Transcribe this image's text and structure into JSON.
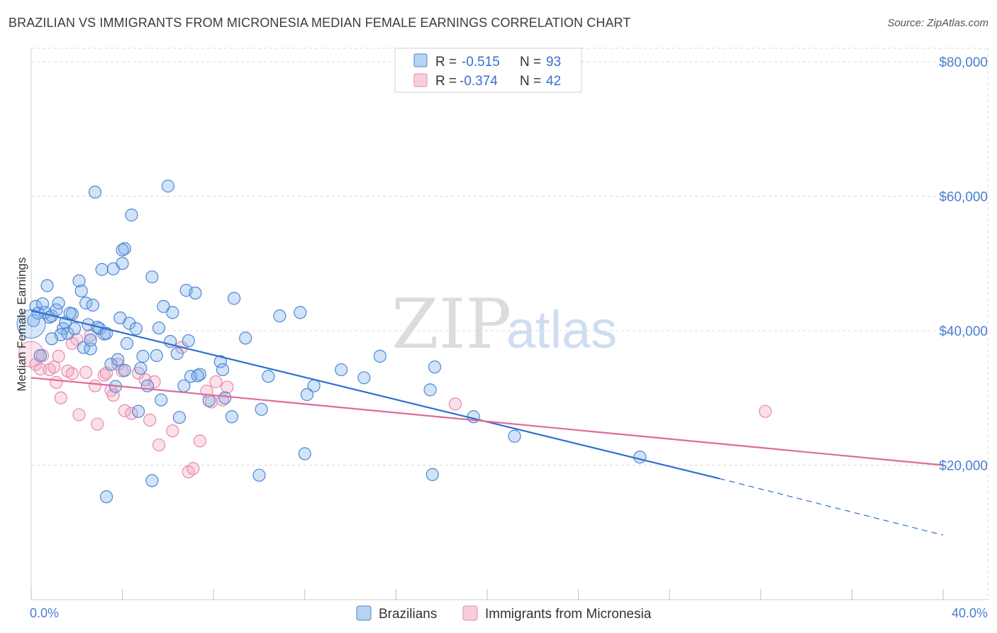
{
  "header": {
    "title": "BRAZILIAN VS IMMIGRANTS FROM MICRONESIA MEDIAN FEMALE EARNINGS CORRELATION CHART",
    "source": "Source: ZipAtlas.com"
  },
  "watermark": {
    "zip": "ZIP",
    "atlas": "atlas"
  },
  "colors": {
    "blue": "#7aaee8",
    "blue_line": "#2f6fd0",
    "pink": "#f2a6c0",
    "pink_line": "#e06a98",
    "grid": "#d8d8d8"
  },
  "legend": {
    "rows": [
      {
        "r_label": "R = ",
        "r_value": "-0.515",
        "n_label": "N = ",
        "n_value": "93"
      },
      {
        "r_label": "R = ",
        "r_value": "-0.374",
        "n_label": "N = ",
        "n_value": "42"
      }
    ]
  },
  "chart_data": {
    "type": "scatter",
    "title": "BRAZILIAN VS IMMIGRANTS FROM MICRONESIA MEDIAN FEMALE EARNINGS CORRELATION CHART",
    "xlabel": "",
    "ylabel": "Median Female Earnings",
    "xlim": [
      0,
      40
    ],
    "ylim": [
      0,
      82000
    ],
    "x_tick_labels": [
      "0.0%",
      "40.0%"
    ],
    "y_ticks": [
      20000,
      40000,
      60000,
      80000
    ],
    "y_tick_labels": [
      "$20,000",
      "$40,000",
      "$60,000",
      "$80,000"
    ],
    "grid": true,
    "legend_placement": "top-center",
    "series": [
      {
        "name": "Brazilians",
        "color": "#7aaee8",
        "trend": {
          "x0": 0,
          "y0": 43000,
          "x1": 30.2,
          "y1": 18000,
          "dashed_to_x": 40,
          "dashed_to_y": 9600
        },
        "points": [
          [
            0.1,
            41500
          ],
          [
            0.2,
            43600
          ],
          [
            0.3,
            42600
          ],
          [
            0.5,
            44000
          ],
          [
            0.6,
            42700
          ],
          [
            0.7,
            46700
          ],
          [
            0.8,
            42000
          ],
          [
            0.9,
            42200
          ],
          [
            1.1,
            43100
          ],
          [
            1.2,
            44100
          ],
          [
            1.4,
            40300
          ],
          [
            1.5,
            41200
          ],
          [
            1.6,
            39600
          ],
          [
            1.8,
            42500
          ],
          [
            1.9,
            40300
          ],
          [
            2.1,
            47400
          ],
          [
            2.2,
            45900
          ],
          [
            2.3,
            37500
          ],
          [
            2.4,
            44100
          ],
          [
            2.5,
            40900
          ],
          [
            2.6,
            37300
          ],
          [
            2.7,
            43800
          ],
          [
            2.8,
            60600
          ],
          [
            3.0,
            40300
          ],
          [
            3.1,
            49100
          ],
          [
            3.2,
            39500
          ],
          [
            3.3,
            39600
          ],
          [
            3.5,
            35000
          ],
          [
            3.6,
            49200
          ],
          [
            3.8,
            35700
          ],
          [
            3.9,
            41900
          ],
          [
            4.0,
            50000
          ],
          [
            4.1,
            52200
          ],
          [
            4.2,
            38100
          ],
          [
            4.3,
            41100
          ],
          [
            4.4,
            57200
          ],
          [
            4.6,
            40300
          ],
          [
            4.7,
            28000
          ],
          [
            4.8,
            34400
          ],
          [
            4.9,
            36200
          ],
          [
            5.1,
            31800
          ],
          [
            5.3,
            48000
          ],
          [
            5.5,
            36300
          ],
          [
            5.6,
            40400
          ],
          [
            5.8,
            43600
          ],
          [
            6.0,
            61500
          ],
          [
            6.1,
            38400
          ],
          [
            6.2,
            42700
          ],
          [
            6.4,
            36600
          ],
          [
            6.5,
            27100
          ],
          [
            6.8,
            46000
          ],
          [
            7.0,
            33200
          ],
          [
            7.2,
            45600
          ],
          [
            7.4,
            33500
          ],
          [
            7.8,
            29600
          ],
          [
            8.3,
            35400
          ],
          [
            8.5,
            30000
          ],
          [
            8.8,
            27200
          ],
          [
            8.9,
            44800
          ],
          [
            9.4,
            38900
          ],
          [
            10.1,
            28300
          ],
          [
            10.4,
            33200
          ],
          [
            10.9,
            42200
          ],
          [
            11.8,
            42700
          ],
          [
            12.0,
            21700
          ],
          [
            12.4,
            31800
          ],
          [
            12.1,
            30500
          ],
          [
            13.6,
            34200
          ],
          [
            14.6,
            33000
          ],
          [
            15.3,
            36200
          ],
          [
            17.5,
            31200
          ],
          [
            17.7,
            34600
          ],
          [
            19.4,
            27200
          ],
          [
            21.2,
            24300
          ],
          [
            26.7,
            21200
          ],
          [
            2.9,
            40500
          ],
          [
            0.4,
            36300
          ],
          [
            1.3,
            39400
          ],
          [
            4.1,
            34100
          ],
          [
            5.7,
            29700
          ],
          [
            6.7,
            31800
          ],
          [
            7.3,
            33300
          ],
          [
            5.3,
            17700
          ],
          [
            3.3,
            15300
          ],
          [
            10.0,
            18500
          ],
          [
            17.6,
            18600
          ],
          [
            4.0,
            52000
          ],
          [
            1.7,
            42600
          ],
          [
            0.9,
            38800
          ],
          [
            2.6,
            38600
          ],
          [
            3.7,
            31700
          ],
          [
            6.9,
            38500
          ],
          [
            8.4,
            34200
          ]
        ]
      },
      {
        "name": "Immigrants from Micronesia",
        "color": "#f2a6c0",
        "trend": {
          "x0": 0,
          "y0": 33000,
          "x1": 40,
          "y1": 20000
        },
        "points": [
          [
            0.2,
            35000
          ],
          [
            0.4,
            34300
          ],
          [
            0.5,
            36300
          ],
          [
            0.8,
            34200
          ],
          [
            1.0,
            34600
          ],
          [
            1.1,
            32300
          ],
          [
            1.2,
            36200
          ],
          [
            1.3,
            30000
          ],
          [
            1.6,
            34000
          ],
          [
            1.8,
            33600
          ],
          [
            2.0,
            38700
          ],
          [
            2.1,
            27500
          ],
          [
            2.4,
            33800
          ],
          [
            2.6,
            39300
          ],
          [
            2.8,
            31800
          ],
          [
            2.9,
            26100
          ],
          [
            3.2,
            33400
          ],
          [
            3.3,
            33700
          ],
          [
            3.5,
            31100
          ],
          [
            3.6,
            30400
          ],
          [
            3.8,
            35000
          ],
          [
            4.0,
            34000
          ],
          [
            4.1,
            28100
          ],
          [
            4.4,
            27700
          ],
          [
            4.7,
            33700
          ],
          [
            5.0,
            32700
          ],
          [
            5.2,
            26700
          ],
          [
            5.4,
            32400
          ],
          [
            5.6,
            23000
          ],
          [
            6.2,
            25100
          ],
          [
            6.6,
            37500
          ],
          [
            6.9,
            19000
          ],
          [
            7.1,
            19500
          ],
          [
            7.4,
            23600
          ],
          [
            7.7,
            31000
          ],
          [
            7.9,
            29400
          ],
          [
            8.1,
            32400
          ],
          [
            8.4,
            29700
          ],
          [
            8.6,
            31600
          ],
          [
            18.6,
            29100
          ],
          [
            32.2,
            28000
          ],
          [
            1.8,
            38100
          ]
        ]
      }
    ]
  },
  "bottom_legend": {
    "items": [
      {
        "label": "Brazilians"
      },
      {
        "label": "Immigrants from Micronesia"
      }
    ]
  }
}
